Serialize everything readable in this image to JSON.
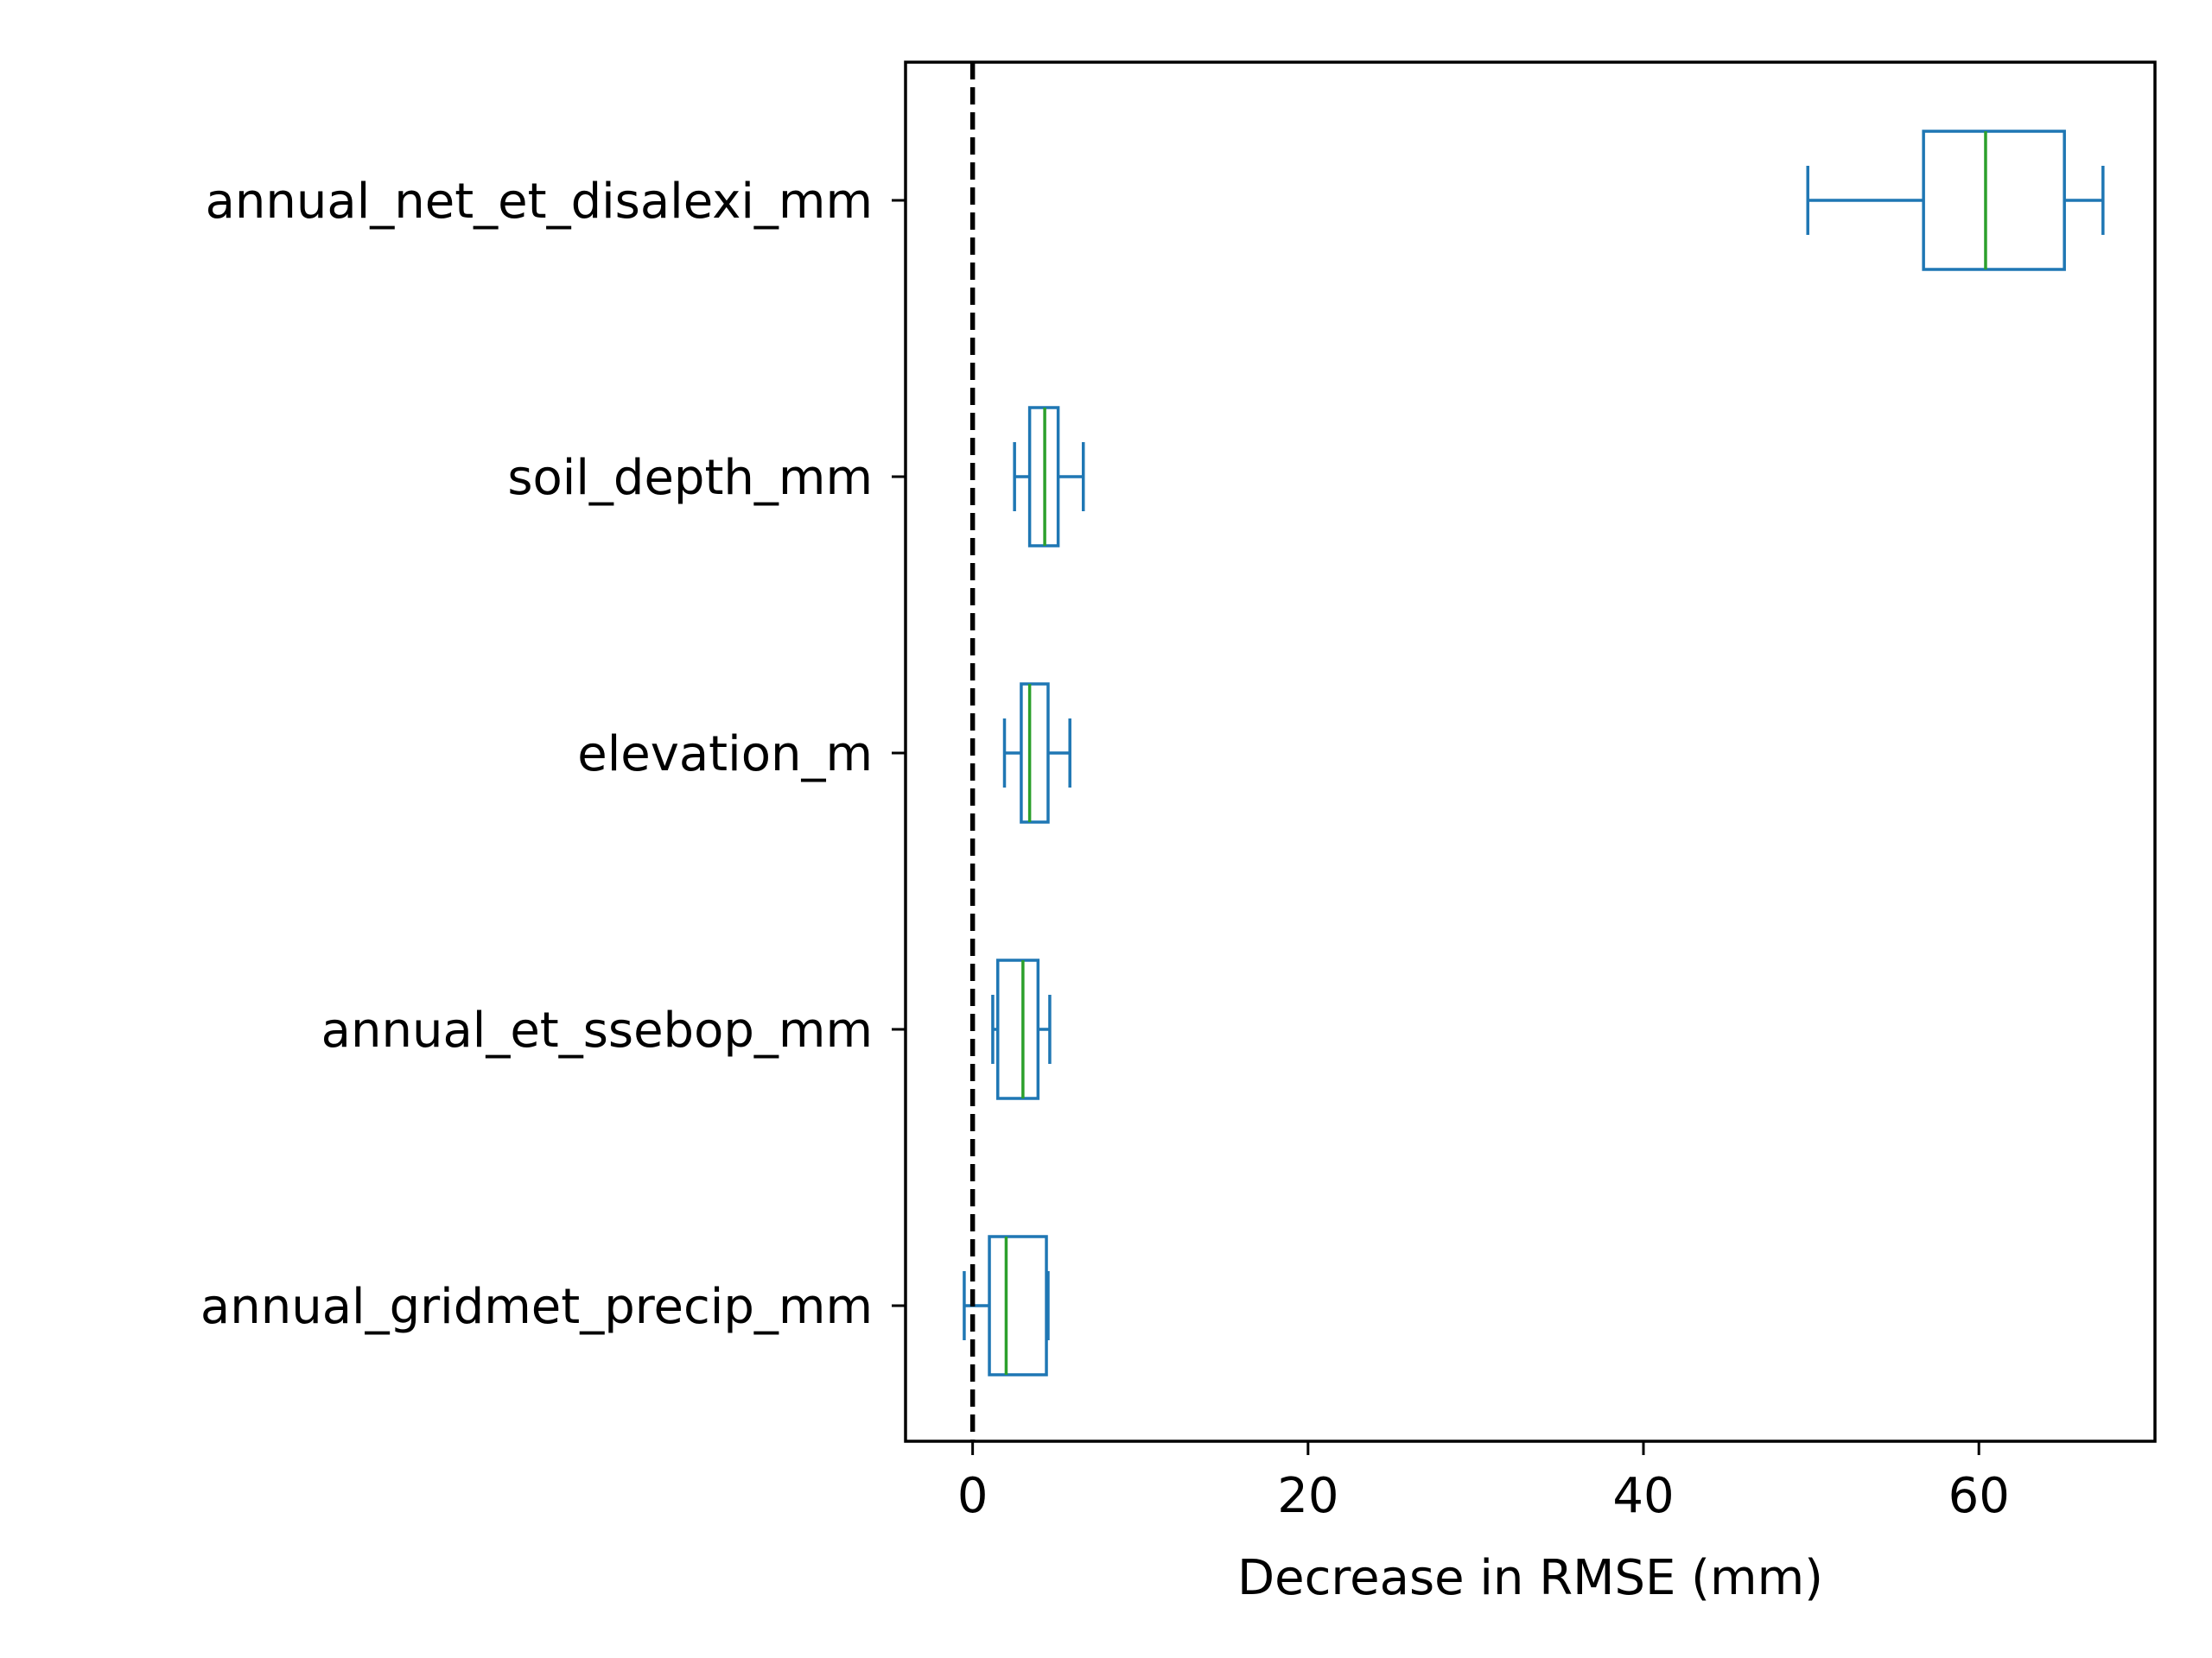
{
  "chart_data": {
    "type": "boxplot",
    "orientation": "horizontal",
    "title": "",
    "xlabel": "Decrease in RMSE (mm)",
    "ylabel": "",
    "xlim": [
      -4,
      70.5
    ],
    "xticks": [
      0,
      20,
      40,
      60
    ],
    "xtick_labels": [
      "0",
      "20",
      "40",
      "60"
    ],
    "grid": false,
    "reference_line": {
      "x": 0,
      "style": "dashed",
      "color": "#000000"
    },
    "colors": {
      "box": "#1f77b4",
      "median": "#2ca02c"
    },
    "categories": [
      "annual_net_et_disalexi_mm",
      "soil_depth_mm",
      "elevation_m",
      "annual_et_ssebop_mm",
      "annual_gridmet_precip_mm"
    ],
    "boxes": [
      {
        "whisker_low": 49.8,
        "q1": 56.7,
        "median": 60.4,
        "q3": 65.1,
        "whisker_high": 67.4
      },
      {
        "whisker_low": 2.5,
        "q1": 3.4,
        "median": 4.3,
        "q3": 5.1,
        "whisker_high": 6.6
      },
      {
        "whisker_low": 1.9,
        "q1": 2.9,
        "median": 3.4,
        "q3": 4.5,
        "whisker_high": 5.8
      },
      {
        "whisker_low": 1.2,
        "q1": 1.5,
        "median": 3.0,
        "q3": 3.9,
        "whisker_high": 4.6
      },
      {
        "whisker_low": -0.5,
        "q1": 1.0,
        "median": 2.0,
        "q3": 4.4,
        "whisker_high": 4.5
      }
    ]
  }
}
